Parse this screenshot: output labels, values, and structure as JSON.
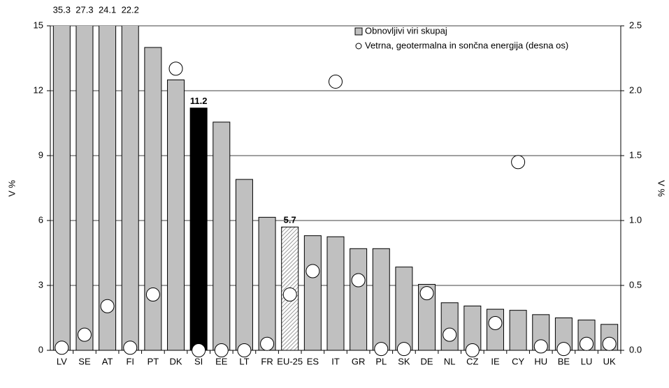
{
  "chart_data": {
    "type": "bar",
    "y_label": "V %",
    "y2_label": "V %",
    "categories": [
      "LV",
      "SE",
      "AT",
      "FI",
      "PT",
      "DK",
      "SI",
      "EE",
      "LT",
      "FR",
      "EU-25",
      "ES",
      "IT",
      "GR",
      "PL",
      "SK",
      "DE",
      "NL",
      "CZ",
      "IE",
      "CY",
      "HU",
      "BE",
      "LU",
      "UK"
    ],
    "series": [
      {
        "name": "Obnovljivi viri skupaj",
        "type": "bar",
        "color": "#c0c0c0",
        "colors": [
          "#c0c0c0",
          "#c0c0c0",
          "#c0c0c0",
          "#c0c0c0",
          "#c0c0c0",
          "#c0c0c0",
          "#000000",
          "#c0c0c0",
          "#c0c0c0",
          "#c0c0c0",
          "#ffffff",
          "#c0c0c0",
          "#c0c0c0",
          "#c0c0c0",
          "#c0c0c0",
          "#c0c0c0",
          "#c0c0c0",
          "#c0c0c0",
          "#c0c0c0",
          "#c0c0c0",
          "#c0c0c0",
          "#c0c0c0",
          "#c0c0c0",
          "#c0c0c0",
          "#c0c0c0"
        ],
        "patterns": [
          null,
          null,
          null,
          null,
          null,
          null,
          null,
          null,
          null,
          null,
          "hatched",
          null,
          null,
          null,
          null,
          null,
          null,
          null,
          null,
          null,
          null,
          null,
          null,
          null,
          null
        ],
        "values": [
          35.3,
          27.3,
          24.1,
          22.2,
          14.0,
          12.5,
          11.2,
          10.55,
          7.9,
          6.15,
          5.7,
          5.3,
          5.25,
          4.7,
          4.7,
          3.85,
          3.05,
          2.2,
          2.05,
          1.9,
          1.85,
          1.65,
          1.5,
          1.4,
          1.2
        ],
        "value_labels": [
          "35.3",
          "27.3",
          "24.1",
          "22.2",
          null,
          null,
          "11.2",
          null,
          null,
          null,
          "5.7",
          null,
          null,
          null,
          null,
          null,
          null,
          null,
          null,
          null,
          null,
          null,
          null,
          null,
          null
        ]
      },
      {
        "name": "Vetrna, geotermalna in sončna energija (desna os)",
        "type": "scatter",
        "axis": "y2",
        "color": "#ffffff",
        "values": [
          0.02,
          0.12,
          0.34,
          0.02,
          0.43,
          2.17,
          0.0,
          0.0,
          0.0,
          0.05,
          0.43,
          0.61,
          2.07,
          0.54,
          0.01,
          0.01,
          0.44,
          0.12,
          0.0,
          0.21,
          1.45,
          0.03,
          0.01,
          0.05,
          0.05
        ]
      }
    ],
    "ylim": [
      0,
      15
    ],
    "yticks": [
      0,
      3,
      6,
      9,
      12,
      15
    ],
    "y2lim": [
      0,
      2.5
    ],
    "y2ticks": [
      {
        "value": 0,
        "label": "0.0"
      },
      0.5,
      {
        "value": 1,
        "label": "1.0"
      },
      1.5,
      {
        "value": 2,
        "label": "2.0"
      },
      2.5
    ],
    "grid": true,
    "legend": "top-right"
  }
}
